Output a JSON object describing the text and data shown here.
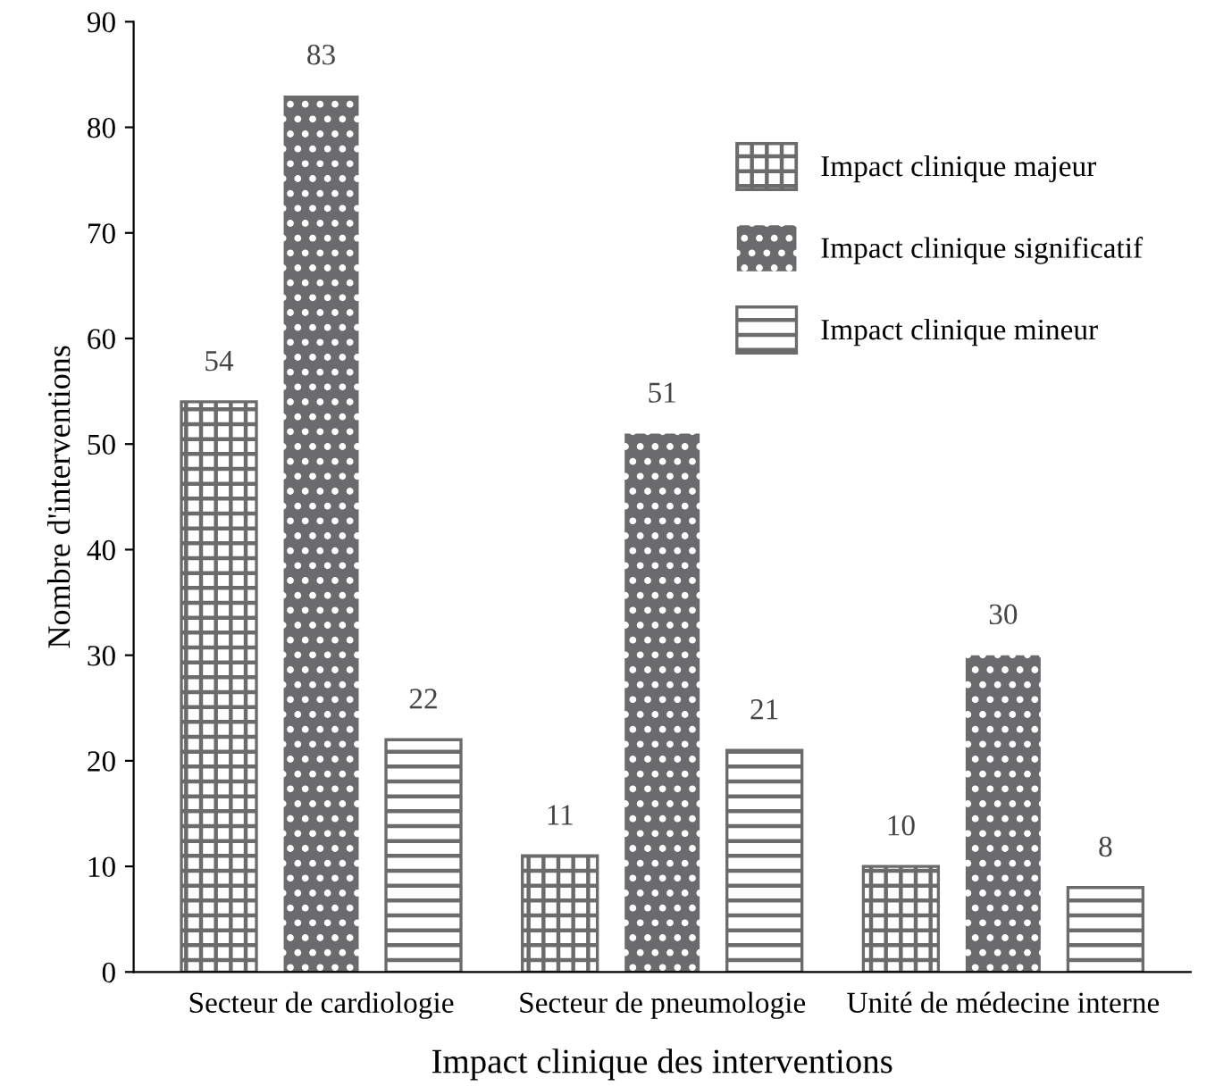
{
  "chart_data": {
    "type": "bar",
    "xlabel": "Impact clinique des interventions",
    "ylabel": "Nombre d'interventions",
    "categories": [
      "Secteur de cardiologie",
      "Secteur de pneumologie",
      "Unité de médecine interne"
    ],
    "series": [
      {
        "name": "Impact clinique majeur",
        "color": "#6b6b6b",
        "values": [
          54,
          11,
          10
        ]
      },
      {
        "name": "Impact clinique significatif",
        "color": "#6b6b6e",
        "values": [
          83,
          51,
          30
        ]
      },
      {
        "name": "Impact clinique mineur",
        "color": "#6b6b6c",
        "values": [
          22,
          21,
          8
        ]
      }
    ],
    "ylim": [
      0,
      90
    ],
    "yticks": [
      0,
      10,
      20,
      30,
      40,
      50,
      60,
      70,
      80,
      90
    ],
    "data_labels": true,
    "grid": false,
    "legend": "top right"
  }
}
